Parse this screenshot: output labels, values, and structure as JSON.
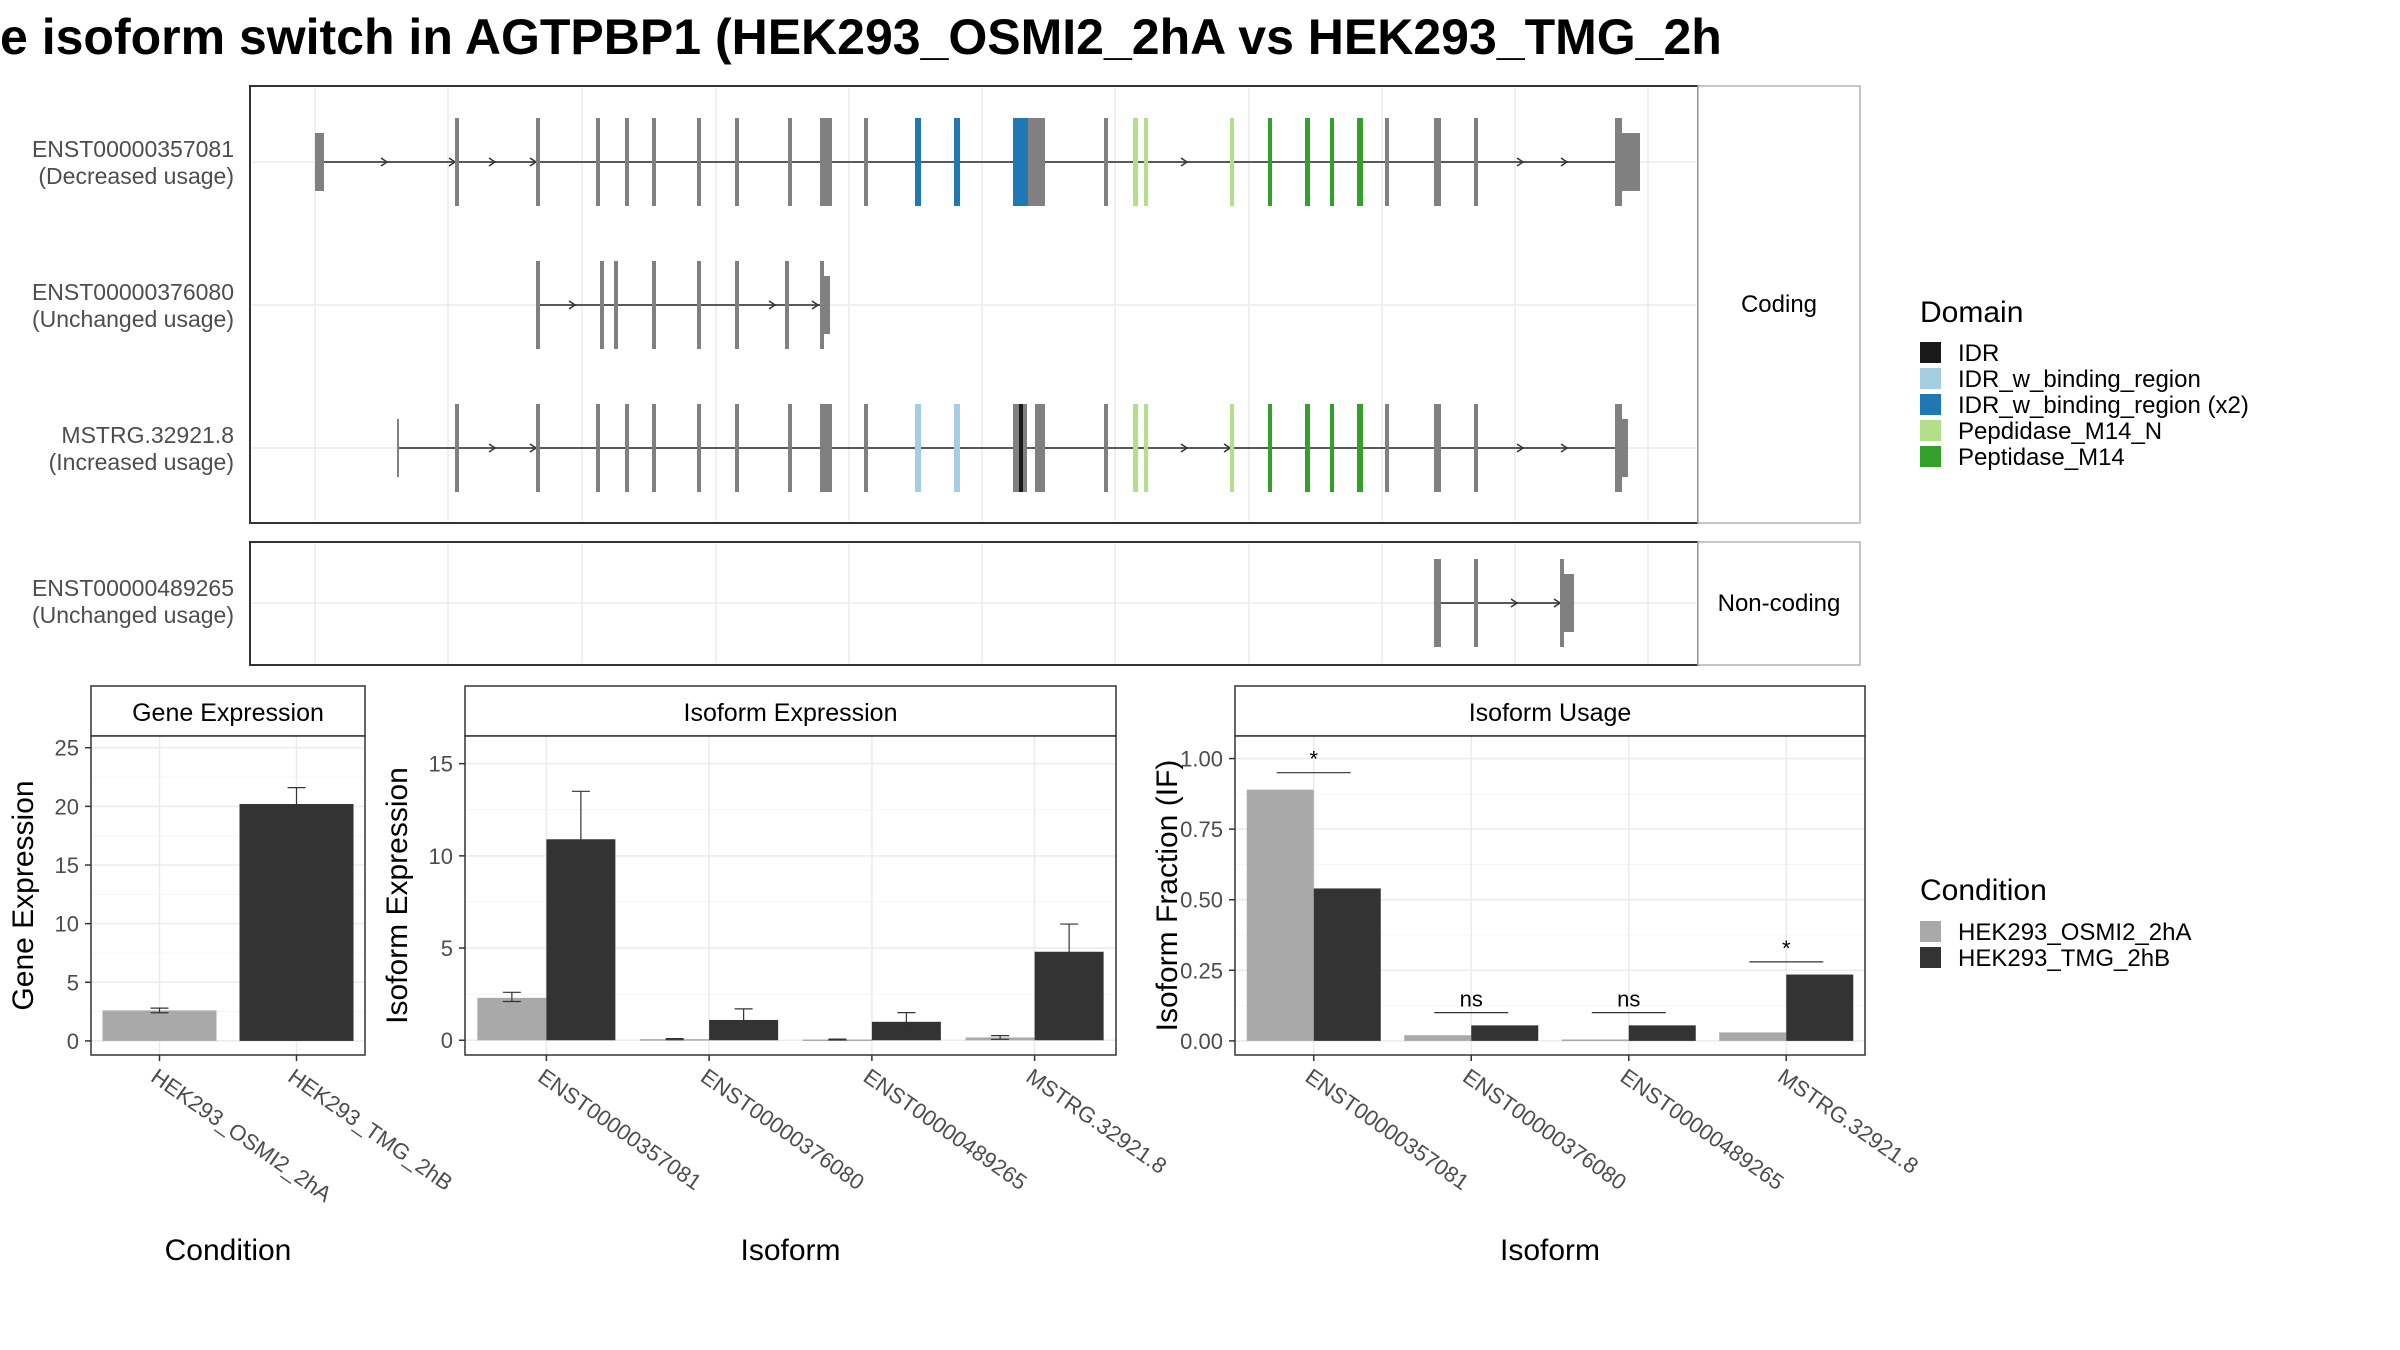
{
  "title": "e isoform switch in AGTPBP1 (HEK293_OSMI2_2hA vs HEK293_TMG_2h",
  "colors": {
    "exon": "#808080",
    "line": "#595959",
    "IDR": "#1a1a1a",
    "IDR_w_binding_region": "#a6cee3",
    "IDR_w_binding_region_x2": "#1f78b4",
    "Pepdidase_M14_N": "#b2df8a",
    "Peptidase_M14": "#33a02c",
    "cond_a": "#a9a9a9",
    "cond_b": "#333333"
  },
  "structure": {
    "coding_strip": "Coding",
    "noncoding_strip": "Non-coding",
    "isoforms": [
      {
        "id": "ENST00000357081",
        "usage": "(Decreased usage)"
      },
      {
        "id": "ENST00000376080",
        "usage": "(Unchanged usage)"
      },
      {
        "id": "MSTRG.32921.8",
        "usage": "(Increased usage)"
      },
      {
        "id": "ENST00000489265",
        "usage": "(Unchanged usage)"
      }
    ]
  },
  "legend_domain": {
    "title": "Domain",
    "items": [
      {
        "label": "IDR",
        "color": "#1a1a1a"
      },
      {
        "label": "IDR_w_binding_region",
        "color": "#a6cee3"
      },
      {
        "label": "IDR_w_binding_region (x2)",
        "color": "#1f78b4"
      },
      {
        "label": "Pepdidase_M14_N",
        "color": "#b2df8a"
      },
      {
        "label": "Peptidase_M14",
        "color": "#33a02c"
      }
    ]
  },
  "legend_condition": {
    "title": "Condition",
    "items": [
      {
        "label": "HEK293_OSMI2_2hA",
        "color": "#a9a9a9"
      },
      {
        "label": "HEK293_TMG_2hB",
        "color": "#333333"
      }
    ]
  },
  "chart_data": [
    {
      "type": "bar",
      "title": "Gene Expression",
      "xlabel": "Condition",
      "ylabel": "Gene Expression",
      "ylim": [
        -1.2,
        26
      ],
      "yticks": [
        0,
        5,
        10,
        15,
        20,
        25
      ],
      "ytick_labels": [
        "0",
        "5",
        "10",
        "15",
        "20",
        "25"
      ],
      "categories": [
        "HEK293_OSMI2_2hA",
        "HEK293_TMG_2hB"
      ],
      "values": [
        2.6,
        20.2
      ],
      "errors": [
        [
          2.4,
          2.8
        ],
        [
          18.8,
          21.6
        ]
      ]
    },
    {
      "type": "bar",
      "title": "Isoform Expression",
      "xlabel": "Isoform",
      "ylabel": "Isoform Expression",
      "ylim": [
        -0.8,
        16.5
      ],
      "yticks": [
        0,
        5,
        10,
        15
      ],
      "ytick_labels": [
        "0",
        "5",
        "10",
        "15"
      ],
      "categories": [
        "ENST00000357081",
        "ENST00000376080",
        "ENST00000489265",
        "MSTRG.32921.8"
      ],
      "series": [
        {
          "name": "HEK293_OSMI2_2hA",
          "values": [
            2.3,
            0.06,
            0.04,
            0.15
          ],
          "errors": [
            [
              2.1,
              2.6
            ],
            [
              0.03,
              0.09
            ],
            [
              0.02,
              0.06
            ],
            [
              0.05,
              0.25
            ]
          ]
        },
        {
          "name": "HEK293_TMG_2hB",
          "values": [
            10.9,
            1.1,
            1.0,
            4.8
          ],
          "errors": [
            [
              8.4,
              13.5
            ],
            [
              0.6,
              1.7
            ],
            [
              0.5,
              1.5
            ],
            [
              3.4,
              6.3
            ]
          ]
        }
      ]
    },
    {
      "type": "bar",
      "title": "Isoform Usage",
      "xlabel": "Isoform",
      "ylabel": "Isoform Fraction (IF)",
      "ylim": [
        -0.05,
        1.08
      ],
      "yticks": [
        0,
        0.25,
        0.5,
        0.75,
        1.0
      ],
      "ytick_labels": [
        "0.00",
        "0.25",
        "0.50",
        "0.75",
        "1.00"
      ],
      "categories": [
        "ENST00000357081",
        "ENST00000376080",
        "ENST00000489265",
        "MSTRG.32921.8"
      ],
      "series": [
        {
          "name": "HEK293_OSMI2_2hA",
          "values": [
            0.89,
            0.02,
            0.005,
            0.03
          ]
        },
        {
          "name": "HEK293_TMG_2hB",
          "values": [
            0.54,
            0.055,
            0.055,
            0.235
          ]
        }
      ],
      "significance": [
        "*",
        "ns",
        "ns",
        "*"
      ],
      "sig_levels": [
        0.95,
        0.1,
        0.1,
        0.28
      ]
    }
  ]
}
